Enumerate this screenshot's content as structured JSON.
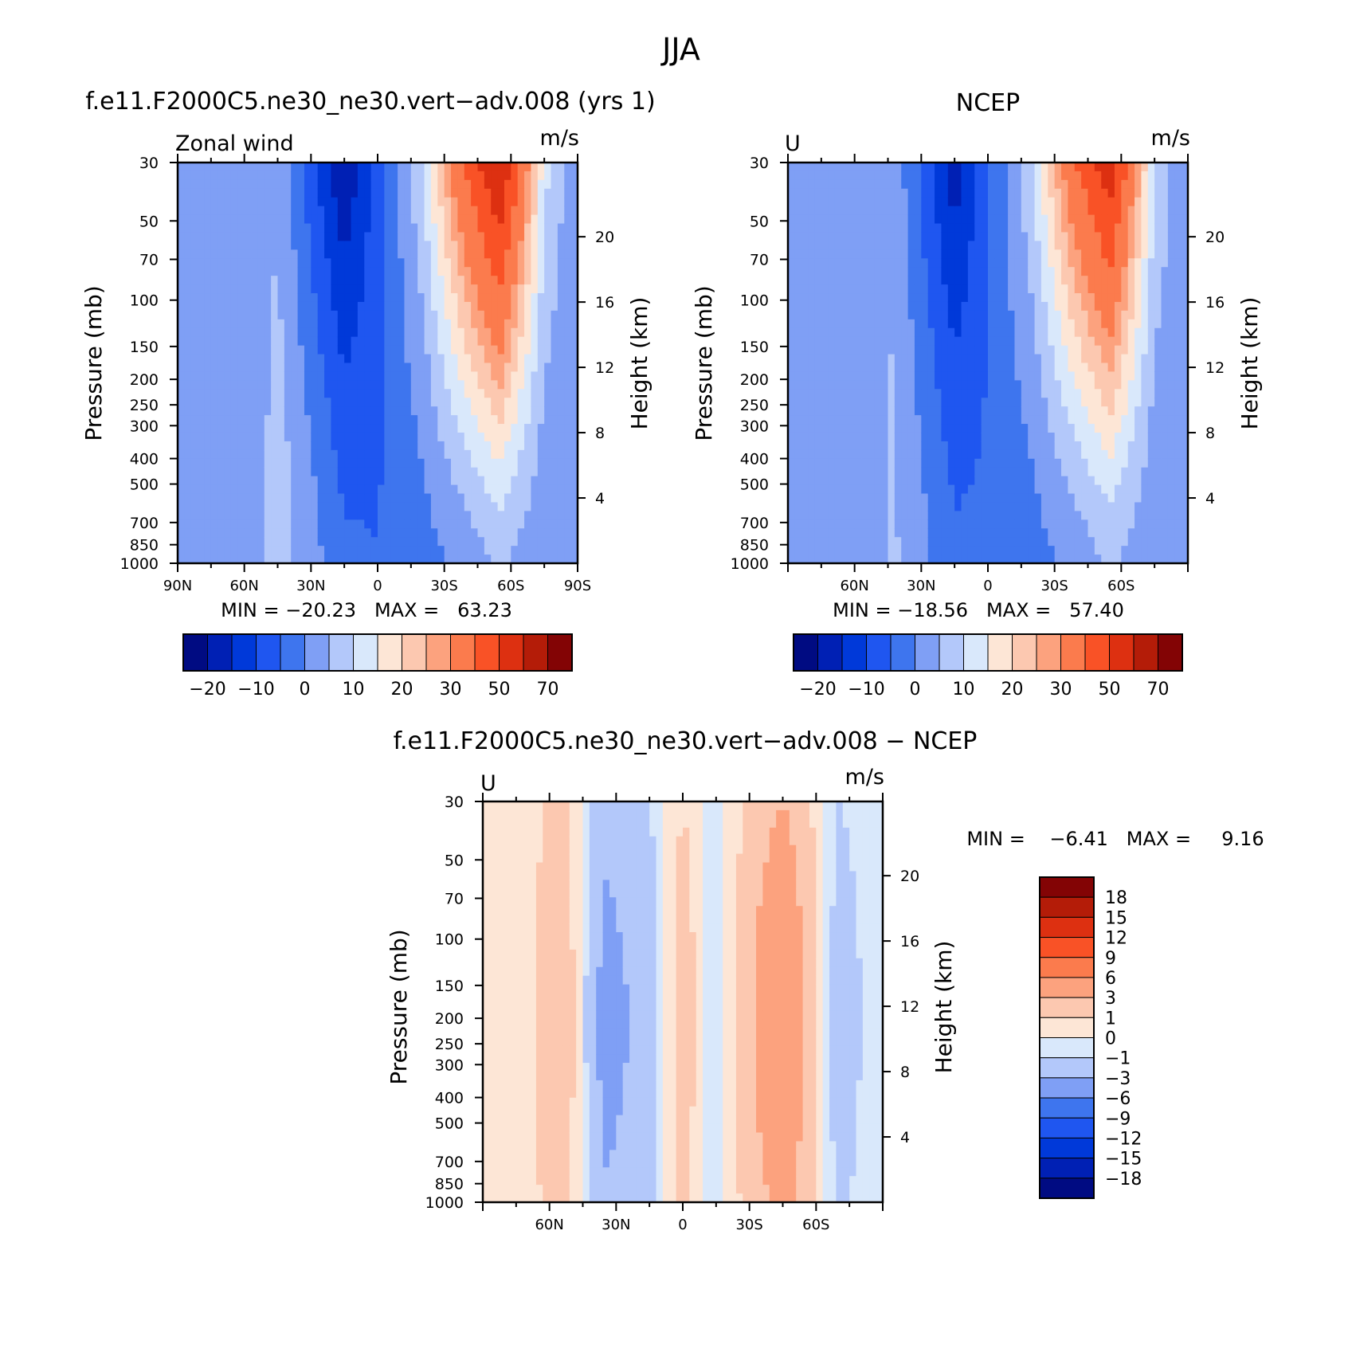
{
  "figure": {
    "title": "JJA"
  },
  "colors": {
    "main_palette": [
      "#000b82",
      "#0020b4",
      "#0039d9",
      "#1f56f0",
      "#3e75ee",
      "#7f9ff5",
      "#b3c8fa",
      "#d9e8fb",
      "#fde6d6",
      "#fcc8b0",
      "#fca27e",
      "#fb7b4d",
      "#f95226",
      "#dd3011",
      "#b41c08",
      "#830405"
    ],
    "diff_palette": [
      "#000b82",
      "#0020b4",
      "#0039d9",
      "#1f56f0",
      "#3e75ee",
      "#7f9ff5",
      "#b3c8fa",
      "#d9e8fb",
      "#fde6d6",
      "#fcc8b0",
      "#fca27e",
      "#fb7b4d",
      "#f95226",
      "#dd3011",
      "#b41c08",
      "#830405"
    ]
  },
  "chart_data": [
    {
      "type": "heatmap",
      "title": "f.e11.F2000C5.ne30_ne30.vert−adv.008 (yrs 1)",
      "left_string": "Zonal wind",
      "right_string": "m/s",
      "ylabel": "Pressure (mb)",
      "ylabel_right": "Height (km)",
      "x_ticks": [
        "90N",
        "60N",
        "30N",
        "0",
        "30S",
        "60S",
        "90S"
      ],
      "x_values": [
        90,
        60,
        30,
        0,
        -30,
        -60,
        -90
      ],
      "xlim": [
        90,
        -90
      ],
      "y_ticks": [
        "30",
        "50",
        "70",
        "100",
        "150",
        "200",
        "250",
        "300",
        "400",
        "500",
        "700",
        "850",
        "1000"
      ],
      "y_values": [
        30,
        50,
        70,
        100,
        150,
        200,
        250,
        300,
        400,
        500,
        700,
        850,
        1000
      ],
      "ylim": [
        1000,
        30
      ],
      "y_scale": "log",
      "height_ticks": [
        "20",
        "16",
        "12",
        "8",
        "4"
      ],
      "height_values": [
        20,
        16,
        12,
        8,
        4
      ],
      "min_max_text": "MIN = −20.23   MAX =   63.23",
      "min": -20.23,
      "max": 63.23,
      "colorbar_labels": [
        "−20",
        "−10",
        "0",
        "10",
        "20",
        "30",
        "50",
        "70"
      ],
      "colorbar_levels": [
        -25,
        -20,
        -15,
        -10,
        -5,
        0,
        5,
        10,
        15,
        20,
        25,
        30,
        40,
        50,
        60,
        70
      ],
      "wind_profile": [
        {
          "lat": 90,
          "surf": 0,
          "upper": 0
        },
        {
          "lat": 60,
          "surf": 0,
          "upper": 2
        },
        {
          "lat": 45,
          "surf": 8,
          "upper": 4
        },
        {
          "lat": 15,
          "surf": -4,
          "upper": -20
        },
        {
          "lat": 0,
          "surf": -5,
          "upper": -8
        },
        {
          "lat": -20,
          "surf": -2,
          "upper": 10
        },
        {
          "lat": -40,
          "surf": 2,
          "upper": 42
        },
        {
          "lat": -55,
          "surf": 6,
          "upper": 62
        },
        {
          "lat": -75,
          "surf": 1,
          "upper": 12
        },
        {
          "lat": -90,
          "surf": 0,
          "upper": 0
        }
      ]
    },
    {
      "type": "heatmap",
      "title": "NCEP",
      "left_string": "U",
      "right_string": "m/s",
      "ylabel": "Pressure (mb)",
      "ylabel_right": "Height (km)",
      "x_ticks": [
        "60N",
        "30N",
        "0",
        "30S",
        "60S"
      ],
      "x_values": [
        60,
        30,
        0,
        -30,
        -60
      ],
      "xlim": [
        90,
        -90
      ],
      "y_ticks": [
        "30",
        "50",
        "70",
        "100",
        "150",
        "200",
        "250",
        "300",
        "400",
        "500",
        "700",
        "850",
        "1000"
      ],
      "y_values": [
        30,
        50,
        70,
        100,
        150,
        200,
        250,
        300,
        400,
        500,
        700,
        850,
        1000
      ],
      "ylim": [
        1000,
        30
      ],
      "y_scale": "log",
      "height_ticks": [
        "20",
        "16",
        "12",
        "8",
        "4"
      ],
      "height_values": [
        20,
        16,
        12,
        8,
        4
      ],
      "min_max_text": "MIN = −18.56   MAX =   57.40",
      "min": -18.56,
      "max": 57.4,
      "colorbar_labels": [
        "−20",
        "−10",
        "0",
        "10",
        "20",
        "30",
        "50",
        "70"
      ],
      "colorbar_levels": [
        -25,
        -20,
        -15,
        -10,
        -5,
        0,
        5,
        10,
        15,
        20,
        25,
        30,
        40,
        50,
        60,
        70
      ],
      "wind_profile": [
        {
          "lat": 90,
          "surf": 0,
          "upper": 0
        },
        {
          "lat": 60,
          "surf": 0,
          "upper": 2
        },
        {
          "lat": 43,
          "surf": 6,
          "upper": 4
        },
        {
          "lat": 15,
          "surf": -4,
          "upper": -18
        },
        {
          "lat": 0,
          "surf": -4,
          "upper": -6
        },
        {
          "lat": -20,
          "surf": -2,
          "upper": 10
        },
        {
          "lat": -40,
          "surf": 2,
          "upper": 40
        },
        {
          "lat": -55,
          "surf": 6,
          "upper": 57
        },
        {
          "lat": -75,
          "surf": 1,
          "upper": 10
        },
        {
          "lat": -90,
          "surf": 0,
          "upper": 0
        }
      ]
    },
    {
      "type": "heatmap",
      "title": "f.e11.F2000C5.ne30_ne30.vert−adv.008 − NCEP",
      "left_string": "U",
      "right_string": "m/s",
      "ylabel": "Pressure (mb)",
      "ylabel_right": "Height (km)",
      "x_ticks": [
        "60N",
        "30N",
        "0",
        "30S",
        "60S"
      ],
      "x_values": [
        60,
        30,
        0,
        -30,
        -60
      ],
      "xlim": [
        90,
        -90
      ],
      "y_ticks": [
        "30",
        "50",
        "70",
        "100",
        "150",
        "200",
        "250",
        "300",
        "400",
        "500",
        "700",
        "850",
        "1000"
      ],
      "y_values": [
        30,
        50,
        70,
        100,
        150,
        200,
        250,
        300,
        400,
        500,
        700,
        850,
        1000
      ],
      "ylim": [
        1000,
        30
      ],
      "y_scale": "log",
      "height_ticks": [
        "20",
        "16",
        "12",
        "8",
        "4"
      ],
      "height_values": [
        20,
        16,
        12,
        8,
        4
      ],
      "min_max_text": "MIN =    −6.41   MAX =     9.16",
      "min": -6.41,
      "max": 9.16,
      "colorbar_labels": [
        "18",
        "15",
        "12",
        "9",
        "6",
        "3",
        "1",
        "0",
        "−1",
        "−3",
        "−6",
        "−9",
        "−12",
        "−15",
        "−18"
      ],
      "colorbar_levels": [
        -21,
        -18,
        -15,
        -12,
        -9,
        -6,
        -3,
        -1,
        0,
        1,
        3,
        6,
        9,
        12,
        15,
        18
      ],
      "diff_profile": [
        {
          "lat": 90,
          "v": 0
        },
        {
          "lat": 70,
          "v": 0.5
        },
        {
          "lat": 55,
          "v": 3
        },
        {
          "lat": 35,
          "v": -4
        },
        {
          "lat": 15,
          "v": -2
        },
        {
          "lat": 0,
          "v": 2
        },
        {
          "lat": -15,
          "v": -1
        },
        {
          "lat": -45,
          "v": 6
        },
        {
          "lat": -70,
          "v": -2
        },
        {
          "lat": -90,
          "v": 0
        }
      ]
    }
  ]
}
